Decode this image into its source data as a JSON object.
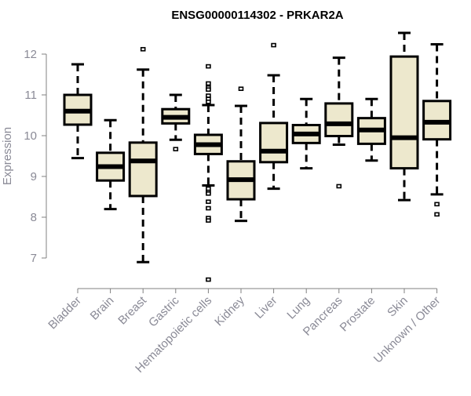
{
  "chart_data": {
    "type": "boxplot",
    "title": "ENSG00000114302 - PRKAR2A",
    "xlabel": "",
    "ylabel": "Expression",
    "ylim": [
      6.4,
      12.6
    ],
    "yticks": [
      7,
      8,
      9,
      10,
      11,
      12
    ],
    "grid": false,
    "colors": {
      "box_fill": "#ede8cd",
      "stroke": "#000000",
      "axis": "#808080",
      "tick_label": "#8a8a96"
    },
    "categories": [
      "Bladder",
      "Brain",
      "Breast",
      "Gastric",
      "Hematopoietic cells",
      "Kidney",
      "Liver",
      "Lung",
      "Pancreas",
      "Prostate",
      "Skin",
      "Unknown / Other"
    ],
    "boxes": [
      {
        "whisker_low": 9.45,
        "q1": 10.27,
        "median": 10.6,
        "q3": 11.0,
        "whisker_high": 11.75,
        "outliers": []
      },
      {
        "whisker_low": 8.2,
        "q1": 8.9,
        "median": 9.24,
        "q3": 9.58,
        "whisker_high": 10.38,
        "outliers": []
      },
      {
        "whisker_low": 6.9,
        "q1": 8.52,
        "median": 9.38,
        "q3": 9.83,
        "whisker_high": 11.62,
        "outliers": [
          12.12
        ]
      },
      {
        "whisker_low": 9.9,
        "q1": 10.3,
        "median": 10.45,
        "q3": 10.65,
        "whisker_high": 11.0,
        "outliers": [
          9.67
        ]
      },
      {
        "whisker_low": 8.78,
        "q1": 9.55,
        "median": 9.78,
        "q3": 10.02,
        "whisker_high": 10.75,
        "outliers": [
          11.7,
          11.28,
          11.18,
          11.13,
          10.98,
          10.9,
          10.83,
          8.7,
          8.62,
          8.58,
          8.38,
          8.22,
          7.98,
          7.92,
          6.47
        ]
      },
      {
        "whisker_low": 7.91,
        "q1": 8.44,
        "median": 8.92,
        "q3": 9.37,
        "whisker_high": 10.73,
        "outliers": [
          11.15
        ]
      },
      {
        "whisker_low": 8.7,
        "q1": 9.35,
        "median": 9.62,
        "q3": 10.31,
        "whisker_high": 11.48,
        "outliers": [
          12.22
        ]
      },
      {
        "whisker_low": 9.2,
        "q1": 9.82,
        "median": 10.04,
        "q3": 10.26,
        "whisker_high": 10.9,
        "outliers": []
      },
      {
        "whisker_low": 9.78,
        "q1": 9.99,
        "median": 10.29,
        "q3": 10.79,
        "whisker_high": 11.91,
        "outliers": [
          8.76
        ]
      },
      {
        "whisker_low": 9.39,
        "q1": 9.8,
        "median": 10.14,
        "q3": 10.43,
        "whisker_high": 10.9,
        "outliers": []
      },
      {
        "whisker_low": 8.42,
        "q1": 9.2,
        "median": 9.95,
        "q3": 11.94,
        "whisker_high": 12.52,
        "outliers": []
      },
      {
        "whisker_low": 8.56,
        "q1": 9.91,
        "median": 10.33,
        "q3": 10.85,
        "whisker_high": 12.24,
        "outliers": [
          8.32,
          8.07
        ]
      }
    ]
  }
}
